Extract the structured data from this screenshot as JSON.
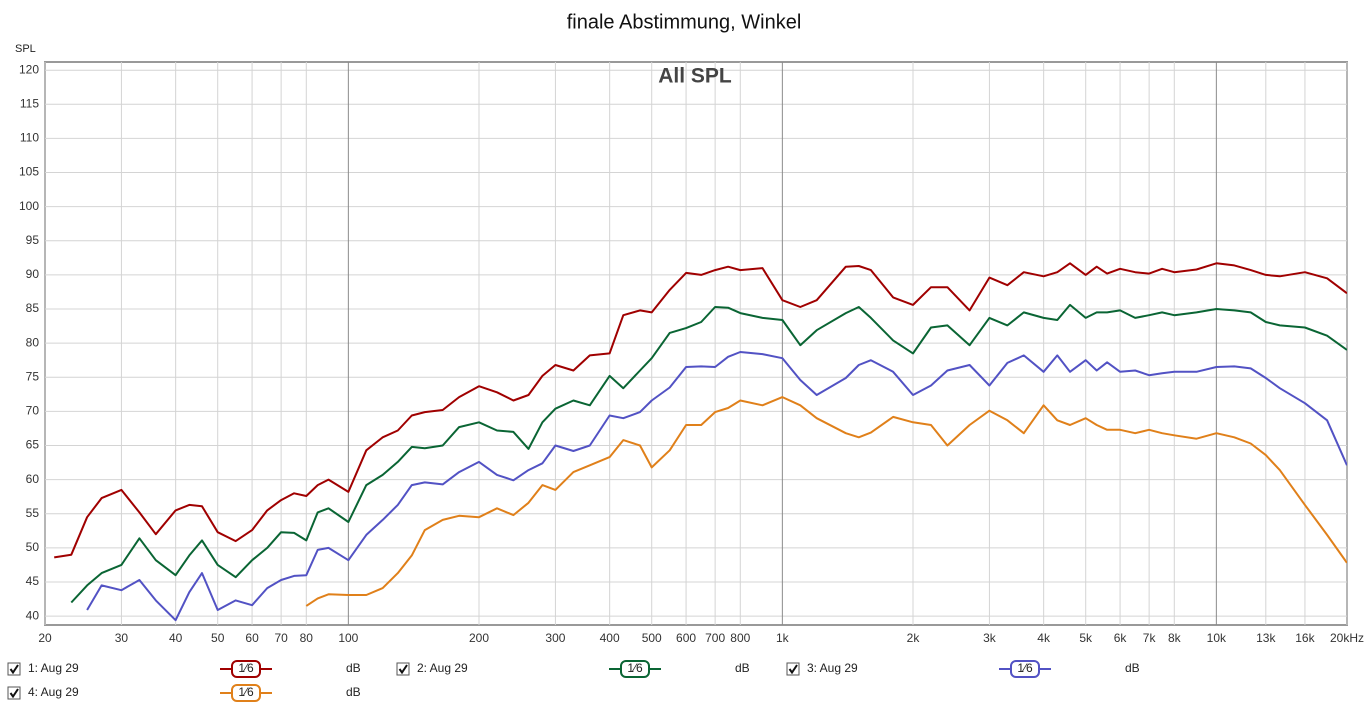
{
  "chart_data": {
    "type": "line",
    "title": "finale Abstimmung, Winkel",
    "y_label": "SPL",
    "annotation": "All SPL",
    "x_log": true,
    "grid": true,
    "xlim": [
      20,
      20000
    ],
    "ylim": [
      38.7,
      121.2
    ],
    "yticks": [
      40,
      45,
      50,
      55,
      60,
      65,
      70,
      75,
      80,
      85,
      90,
      95,
      100,
      105,
      110,
      115,
      120
    ],
    "xticks": [
      20,
      30,
      40,
      50,
      60,
      70,
      80,
      100,
      200,
      300,
      400,
      500,
      600,
      700,
      800,
      {
        "value": 1000,
        "label": "1k"
      },
      {
        "value": 2000,
        "label": "2k"
      },
      {
        "value": 3000,
        "label": "3k"
      },
      {
        "value": 4000,
        "label": "4k"
      },
      {
        "value": 5000,
        "label": "5k"
      },
      {
        "value": 6000,
        "label": "6k"
      },
      {
        "value": 7000,
        "label": "7k"
      },
      {
        "value": 8000,
        "label": "8k"
      },
      {
        "value": 10000,
        "label": "10k"
      },
      {
        "value": 13000,
        "label": "13k"
      },
      {
        "value": 16000,
        "label": "16k"
      },
      {
        "value": 20000,
        "label": "20kHz"
      }
    ],
    "x": [
      21,
      23,
      25,
      27,
      30,
      33,
      36,
      40,
      43,
      46,
      50,
      55,
      60,
      65,
      70,
      75,
      80,
      85,
      90,
      100,
      110,
      120,
      130,
      140,
      150,
      165,
      180,
      200,
      220,
      240,
      260,
      280,
      300,
      330,
      360,
      400,
      430,
      470,
      500,
      550,
      600,
      650,
      700,
      750,
      800,
      900,
      1000,
      1100,
      1200,
      1400,
      1500,
      1600,
      1800,
      2000,
      2200,
      2400,
      2700,
      3000,
      3300,
      3600,
      4000,
      4300,
      4600,
      5000,
      5300,
      5600,
      6000,
      6500,
      7000,
      7500,
      8000,
      9000,
      10000,
      11000,
      12000,
      13000,
      14000,
      16000,
      18000,
      20000
    ],
    "series": [
      {
        "name": "1: Aug 29",
        "color": "#a00000",
        "smoothing": "1⁄6",
        "unit": "dB",
        "values": [
          48.6,
          49,
          54.5,
          57.3,
          58.5,
          55.2,
          52,
          55.5,
          56.3,
          56.1,
          52.3,
          51,
          52.6,
          55.5,
          57,
          58,
          57.6,
          59.2,
          60,
          58.2,
          64.3,
          66.2,
          67.2,
          69.4,
          69.9,
          70.2,
          72.1,
          73.7,
          72.8,
          71.6,
          72.4,
          75.2,
          76.8,
          76,
          78.2,
          78.5,
          84.1,
          84.8,
          84.5,
          87.8,
          90.3,
          90,
          90.7,
          91.2,
          90.7,
          91,
          86.3,
          85.3,
          86.3,
          91.2,
          91.3,
          90.7,
          86.7,
          85.6,
          88.2,
          88.2,
          84.8,
          89.6,
          88.5,
          90.4,
          89.8,
          90.4,
          91.7,
          90,
          91.2,
          90.2,
          90.9,
          90.4,
          90.2,
          90.9,
          90.4,
          90.8,
          91.7,
          91.4,
          90.7,
          90,
          89.8,
          90.4,
          89.5,
          87.3
        ]
      },
      {
        "name": "2: Aug 29",
        "color": "#0a6534",
        "smoothing": "1⁄6",
        "unit": "dB",
        "values": [
          null,
          42,
          44.5,
          46.3,
          47.5,
          51.4,
          48.2,
          46,
          48.9,
          51.1,
          47.5,
          45.7,
          48.2,
          50,
          52.3,
          52.2,
          51.1,
          55.2,
          55.8,
          53.8,
          59.2,
          60.7,
          62.6,
          64.8,
          64.6,
          65,
          67.7,
          68.4,
          67.2,
          67,
          64.5,
          68.4,
          70.4,
          71.6,
          70.9,
          75.2,
          73.4,
          76,
          77.8,
          81.5,
          82.2,
          83.1,
          85.3,
          85.2,
          84.4,
          83.7,
          83.4,
          79.7,
          81.9,
          84.4,
          85.3,
          83.7,
          80.4,
          78.5,
          82.3,
          82.6,
          79.7,
          83.7,
          82.6,
          84.5,
          83.7,
          83.4,
          85.6,
          83.7,
          84.5,
          84.5,
          84.8,
          83.7,
          84.1,
          84.5,
          84.1,
          84.5,
          85,
          84.8,
          84.5,
          83.1,
          82.6,
          82.3,
          81.1,
          79
        ]
      },
      {
        "name": "3: Aug 29",
        "color": "#5252c4",
        "smoothing": "1⁄6",
        "unit": "dB",
        "values": [
          null,
          null,
          40.9,
          44.5,
          43.8,
          45.3,
          42.3,
          39.4,
          43.5,
          46.3,
          40.9,
          42.3,
          41.6,
          44.1,
          45.3,
          45.9,
          46,
          49.7,
          50,
          48.2,
          51.9,
          54.1,
          56.3,
          59.2,
          59.6,
          59.3,
          61.1,
          62.6,
          60.7,
          59.9,
          61.4,
          62.4,
          65,
          64.2,
          65,
          69.4,
          69,
          69.9,
          71.6,
          73.5,
          76.5,
          76.6,
          76.5,
          78,
          78.7,
          78.4,
          77.8,
          74.6,
          72.4,
          74.9,
          76.8,
          77.5,
          75.8,
          72.4,
          73.8,
          76,
          76.8,
          73.8,
          77.1,
          78.2,
          75.8,
          78.2,
          75.8,
          77.5,
          76,
          77.2,
          75.8,
          76,
          75.3,
          75.6,
          75.8,
          75.8,
          76.5,
          76.6,
          76.3,
          74.9,
          73.4,
          71.2,
          68.7,
          62.1
        ]
      },
      {
        "name": "4: Aug 29",
        "color": "#e0801a",
        "smoothing": "1⁄6",
        "unit": "dB",
        "values": [
          null,
          null,
          null,
          null,
          null,
          null,
          null,
          null,
          null,
          null,
          null,
          null,
          null,
          null,
          null,
          null,
          41.5,
          42.6,
          43.2,
          43.1,
          43.1,
          44.1,
          46.3,
          48.9,
          52.6,
          54.1,
          54.7,
          54.5,
          55.8,
          54.8,
          56.6,
          59.2,
          58.5,
          61.1,
          62.1,
          63.3,
          65.8,
          65,
          61.8,
          64.3,
          68,
          68,
          69.9,
          70.5,
          71.6,
          70.9,
          72.1,
          70.9,
          69,
          66.8,
          66.2,
          66.9,
          69.2,
          68.4,
          68,
          65,
          68,
          70.1,
          68.7,
          66.8,
          70.9,
          68.7,
          68,
          69,
          68,
          67.3,
          67.3,
          66.8,
          67.3,
          66.8,
          66.5,
          66,
          66.8,
          66.2,
          65.3,
          63.6,
          61.4,
          56.3,
          51.9,
          47.8
        ]
      }
    ]
  }
}
